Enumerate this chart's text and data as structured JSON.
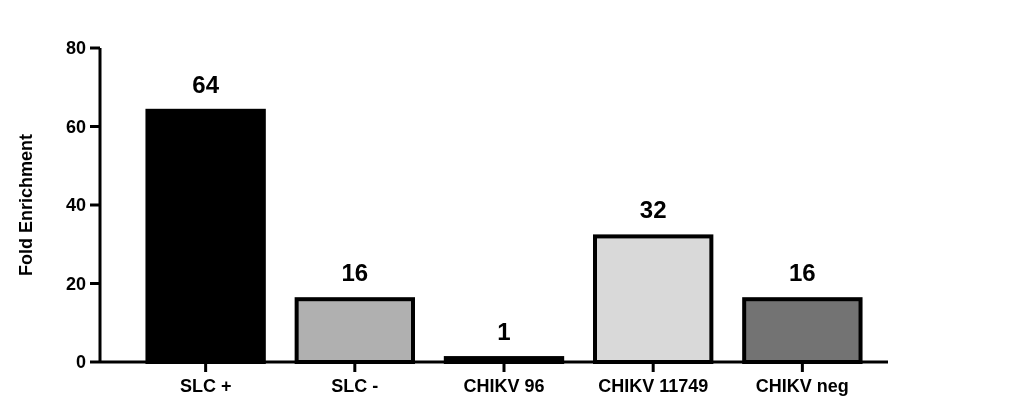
{
  "chart_data": {
    "type": "bar",
    "ylabel": "Fold Enrichment",
    "categories": [
      "SLC +",
      "SLC -",
      "CHIKV 96",
      "CHIKV 11749",
      "CHIKV neg"
    ],
    "values": [
      64,
      16,
      1,
      32,
      16
    ],
    "colors": [
      "#000000",
      "#b0b0b0",
      "#404040",
      "#d9d9d9",
      "#737373"
    ],
    "ylim": [
      0,
      80
    ],
    "yticks": [
      0,
      20,
      40,
      60,
      80
    ],
    "data_labels": true
  }
}
